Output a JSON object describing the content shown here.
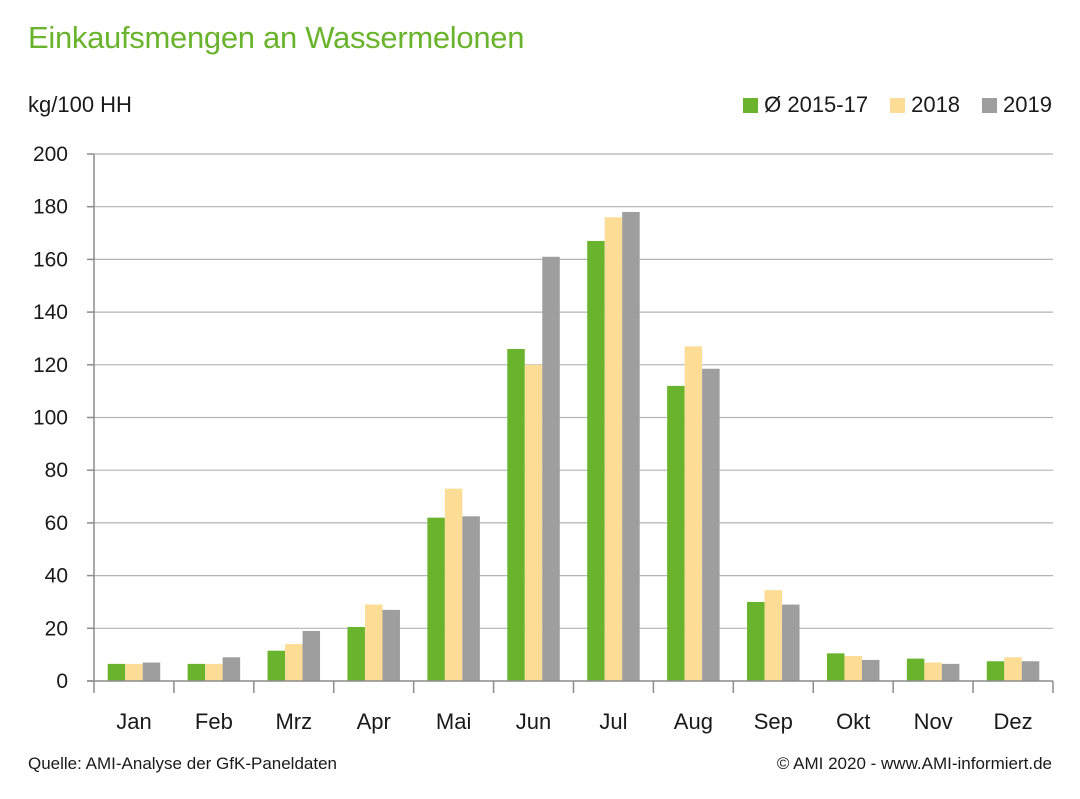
{
  "chart_data": {
    "type": "bar",
    "title": "Einkaufsmengen an Wassermelonen",
    "ylabel": "kg/100 HH",
    "xlabel": "",
    "categories": [
      "Jan",
      "Feb",
      "Mrz",
      "Apr",
      "Mai",
      "Jun",
      "Jul",
      "Aug",
      "Sep",
      "Okt",
      "Nov",
      "Dez"
    ],
    "series": [
      {
        "name": "Ø 2015-17",
        "color": "#6ab42d",
        "values": [
          6.5,
          6.5,
          11.5,
          20.5,
          62,
          126,
          167,
          112,
          30,
          10.5,
          8.5,
          7.5
        ]
      },
      {
        "name": "2018",
        "color": "#fddc96",
        "values": [
          6.5,
          6.5,
          14,
          29,
          73,
          120,
          176,
          127,
          34.5,
          9.5,
          7,
          9
        ]
      },
      {
        "name": "2019",
        "color": "#9e9e9e",
        "values": [
          7,
          9,
          19,
          27,
          62.5,
          161,
          178,
          118.5,
          29,
          8,
          6.5,
          7.5
        ]
      }
    ],
    "ylim": [
      0,
      200
    ],
    "yticks": [
      0,
      20,
      40,
      60,
      80,
      100,
      120,
      140,
      160,
      180,
      200
    ],
    "grid": true,
    "legend_position": "top-right"
  },
  "footer": {
    "source": "Quelle: AMI-Analyse der GfK-Paneldaten",
    "copyright": "© AMI 2020 - www.AMI-informiert.de"
  }
}
